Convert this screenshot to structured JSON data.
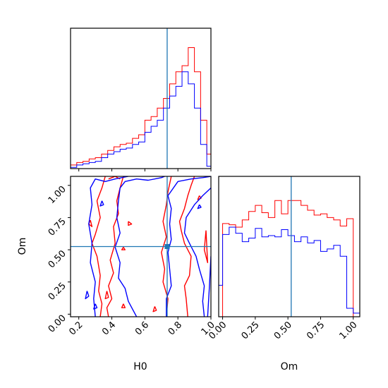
{
  "colors": {
    "series_a": "#ff0000",
    "series_b": "#0000ff",
    "truth": "#1f77b4",
    "axes": "#000000"
  },
  "chart_data": [
    {
      "panel": "H0 marginal histogram",
      "type": "line",
      "style": "step",
      "xlim": [
        0.15,
        1.0
      ],
      "ylim": [
        0,
        1.16
      ],
      "y_ticks_shown": false,
      "x_tick_labels_shown": false,
      "bin_edges": [
        0.15,
        0.1875,
        0.225,
        0.2625,
        0.3,
        0.3375,
        0.375,
        0.4125,
        0.45,
        0.4875,
        0.525,
        0.5625,
        0.6,
        0.6375,
        0.675,
        0.7125,
        0.75,
        0.7875,
        0.825,
        0.8625,
        0.9,
        0.9375,
        0.975,
        1.0
      ],
      "series": [
        {
          "color": "red",
          "values": [
            0.03,
            0.05,
            0.06,
            0.08,
            0.09,
            0.12,
            0.15,
            0.18,
            0.2,
            0.21,
            0.25,
            0.28,
            0.4,
            0.43,
            0.5,
            0.58,
            0.7,
            0.8,
            0.85,
            1.0,
            0.8,
            0.4,
            0.12
          ]
        },
        {
          "color": "blue",
          "values": [
            0.01,
            0.03,
            0.04,
            0.05,
            0.06,
            0.09,
            0.12,
            0.14,
            0.16,
            0.17,
            0.2,
            0.22,
            0.3,
            0.35,
            0.4,
            0.5,
            0.6,
            0.68,
            0.8,
            0.7,
            0.5,
            0.2,
            0.02
          ]
        }
      ],
      "vline_x": 0.735
    },
    {
      "panel": "H0 vs Om contours",
      "type": "line",
      "style": "contour",
      "xlim": [
        0.15,
        1.0
      ],
      "ylim": [
        -0.02,
        1.07
      ],
      "x_ticks": [
        0.2,
        0.4,
        0.6,
        0.8,
        1.0
      ],
      "y_ticks": [
        0.0,
        0.25,
        0.5,
        0.75,
        1.0
      ],
      "vline_x": 0.735,
      "hline_y": 0.525,
      "marker": [
        0.735,
        0.525
      ],
      "series": [
        {
          "color": "red",
          "paths": [
            [
              [
                0.33,
                -0.02
              ],
              [
                0.34,
                0.08
              ],
              [
                0.32,
                0.18
              ],
              [
                0.33,
                0.3
              ],
              [
                0.31,
                0.45
              ],
              [
                0.28,
                0.55
              ],
              [
                0.3,
                0.62
              ],
              [
                0.33,
                0.75
              ],
              [
                0.31,
                0.88
              ],
              [
                0.34,
                0.98
              ],
              [
                0.36,
                1.07
              ]
            ],
            [
              [
                0.47,
                1.07
              ],
              [
                0.45,
                0.98
              ],
              [
                0.43,
                0.88
              ],
              [
                0.44,
                0.78
              ],
              [
                0.41,
                0.68
              ],
              [
                0.42,
                0.55
              ],
              [
                0.39,
                0.42
              ],
              [
                0.41,
                0.32
              ],
              [
                0.38,
                0.22
              ],
              [
                0.4,
                0.12
              ],
              [
                0.37,
                0.05
              ],
              [
                0.38,
                -0.02
              ]
            ],
            [
              [
                0.73,
                -0.02
              ],
              [
                0.74,
                0.12
              ],
              [
                0.71,
                0.25
              ],
              [
                0.72,
                0.35
              ],
              [
                0.7,
                0.48
              ],
              [
                0.73,
                0.6
              ],
              [
                0.71,
                0.72
              ],
              [
                0.73,
                0.85
              ],
              [
                0.74,
                0.95
              ],
              [
                0.76,
                1.07
              ]
            ],
            [
              [
                0.86,
                -0.02
              ],
              [
                0.85,
                0.12
              ],
              [
                0.84,
                0.22
              ],
              [
                0.87,
                0.3
              ],
              [
                0.88,
                0.45
              ],
              [
                0.84,
                0.55
              ],
              [
                0.82,
                0.65
              ],
              [
                0.81,
                0.72
              ],
              [
                0.84,
                0.82
              ],
              [
                0.86,
                0.92
              ],
              [
                0.88,
                1.0
              ],
              [
                0.9,
                1.07
              ]
            ],
            [
              [
                0.5,
                0.72
              ],
              [
                0.52,
                0.7
              ],
              [
                0.5,
                0.69
              ],
              [
                0.5,
                0.72
              ]
            ],
            [
              [
                0.27,
                0.73
              ],
              [
                0.26,
                0.7
              ],
              [
                0.28,
                0.68
              ],
              [
                0.27,
                0.73
              ]
            ],
            [
              [
                0.47,
                0.52
              ],
              [
                0.48,
                0.5
              ],
              [
                0.46,
                0.5
              ],
              [
                0.47,
                0.52
              ]
            ],
            [
              [
                0.37,
                0.18
              ],
              [
                0.38,
                0.13
              ],
              [
                0.36,
                0.12
              ],
              [
                0.37,
                0.18
              ]
            ],
            [
              [
                0.47,
                0.08
              ],
              [
                0.48,
                0.05
              ],
              [
                0.46,
                0.05
              ],
              [
                0.47,
                0.08
              ]
            ],
            [
              [
                0.66,
                0.06
              ],
              [
                0.67,
                0.03
              ],
              [
                0.65,
                0.02
              ],
              [
                0.66,
                0.06
              ]
            ],
            [
              [
                0.93,
                0.92
              ],
              [
                0.94,
                0.9
              ],
              [
                0.92,
                0.89
              ],
              [
                0.93,
                0.92
              ]
            ],
            [
              [
                0.97,
                0.65
              ],
              [
                0.96,
                0.5
              ],
              [
                0.98,
                0.4
              ],
              [
                0.97,
                0.65
              ]
            ],
            [
              [
                0.38,
                1.05
              ],
              [
                0.42,
                1.07
              ],
              [
                0.45,
                1.05
              ]
            ]
          ]
        },
        {
          "color": "blue",
          "paths": [
            [
              [
                0.3,
                -0.02
              ],
              [
                0.29,
                0.12
              ],
              [
                0.3,
                0.25
              ],
              [
                0.27,
                0.4
              ],
              [
                0.28,
                0.55
              ],
              [
                0.26,
                0.7
              ],
              [
                0.28,
                0.85
              ],
              [
                0.27,
                0.98
              ],
              [
                0.3,
                1.05
              ],
              [
                0.36,
                1.03
              ],
              [
                0.42,
                1.05
              ],
              [
                0.5,
                1.07
              ]
            ],
            [
              [
                0.55,
                -0.02
              ],
              [
                0.5,
                0.1
              ],
              [
                0.48,
                0.2
              ],
              [
                0.44,
                0.28
              ],
              [
                0.45,
                0.4
              ],
              [
                0.42,
                0.52
              ],
              [
                0.45,
                0.63
              ],
              [
                0.43,
                0.75
              ],
              [
                0.44,
                0.88
              ],
              [
                0.45,
                0.98
              ],
              [
                0.48,
                1.03
              ],
              [
                0.55,
                1.05
              ],
              [
                0.62,
                1.04
              ],
              [
                0.7,
                1.06
              ],
              [
                0.72,
                1.07
              ]
            ],
            [
              [
                0.73,
                -0.02
              ],
              [
                0.73,
                0.12
              ],
              [
                0.76,
                0.22
              ],
              [
                0.75,
                0.35
              ],
              [
                0.74,
                0.48
              ],
              [
                0.76,
                0.58
              ],
              [
                0.75,
                0.7
              ],
              [
                0.76,
                0.82
              ],
              [
                0.74,
                0.92
              ],
              [
                0.8,
                1.03
              ],
              [
                0.88,
                1.05
              ],
              [
                0.95,
                1.06
              ],
              [
                1.0,
                1.07
              ]
            ],
            [
              [
                0.96,
                -0.02
              ],
              [
                0.95,
                0.1
              ],
              [
                0.96,
                0.22
              ],
              [
                0.93,
                0.35
              ],
              [
                0.91,
                0.45
              ],
              [
                0.87,
                0.55
              ],
              [
                0.84,
                0.63
              ],
              [
                0.85,
                0.75
              ],
              [
                0.9,
                0.85
              ],
              [
                0.95,
                0.92
              ],
              [
                1.0,
                0.98
              ]
            ],
            [
              [
                0.98,
                -0.02
              ],
              [
                0.99,
                0.2
              ],
              [
                1.0,
                0.45
              ]
            ],
            [
              [
                0.34,
                0.88
              ],
              [
                0.35,
                0.85
              ],
              [
                0.33,
                0.84
              ],
              [
                0.34,
                0.88
              ]
            ],
            [
              [
                0.25,
                0.18
              ],
              [
                0.26,
                0.14
              ],
              [
                0.24,
                0.12
              ],
              [
                0.25,
                0.18
              ]
            ],
            [
              [
                0.3,
                0.08
              ],
              [
                0.31,
                0.05
              ],
              [
                0.29,
                0.04
              ],
              [
                0.3,
                0.08
              ]
            ],
            [
              [
                0.93,
                0.85
              ],
              [
                0.94,
                0.83
              ],
              [
                0.92,
                0.82
              ],
              [
                0.93,
                0.85
              ]
            ]
          ]
        }
      ]
    },
    {
      "panel": "Om marginal histogram",
      "type": "line",
      "style": "step",
      "xlim": [
        -0.03,
        1.05
      ],
      "ylim": [
        0,
        1.16
      ],
      "x_ticks": [
        0.0,
        0.25,
        0.5,
        0.75,
        1.0
      ],
      "y_ticks_shown": false,
      "bin_edges": [
        -0.03,
        0.0,
        0.05,
        0.1,
        0.15,
        0.2,
        0.25,
        0.3,
        0.35,
        0.4,
        0.45,
        0.5,
        0.55,
        0.6,
        0.65,
        0.7,
        0.75,
        0.8,
        0.85,
        0.9,
        0.95,
        1.0,
        1.05
      ],
      "series": [
        {
          "color": "red",
          "values": [
            0.0,
            0.77,
            0.76,
            0.74,
            0.8,
            0.87,
            0.92,
            0.86,
            0.82,
            0.96,
            0.85,
            0.96,
            0.96,
            0.92,
            0.88,
            0.84,
            0.85,
            0.82,
            0.8,
            0.75,
            0.81,
            0.0
          ]
        },
        {
          "color": "blue",
          "values": [
            0.26,
            0.68,
            0.74,
            0.69,
            0.62,
            0.65,
            0.73,
            0.66,
            0.67,
            0.66,
            0.72,
            0.67,
            0.62,
            0.66,
            0.61,
            0.63,
            0.54,
            0.56,
            0.59,
            0.5,
            0.07,
            0.03
          ]
        }
      ],
      "vline_x": 0.525
    }
  ],
  "axis_labels": {
    "joint_x": "H0",
    "joint_y": "Om",
    "om_hist_x": "Om"
  },
  "tick_labels": {
    "joint_x": [
      "0.2",
      "0.4",
      "0.6",
      "0.8",
      "1.0"
    ],
    "joint_y": [
      "0.00",
      "0.25",
      "0.50",
      "0.75",
      "1.00"
    ],
    "om_hist_x": [
      "0.00",
      "0.25",
      "0.50",
      "0.75",
      "1.00"
    ]
  }
}
